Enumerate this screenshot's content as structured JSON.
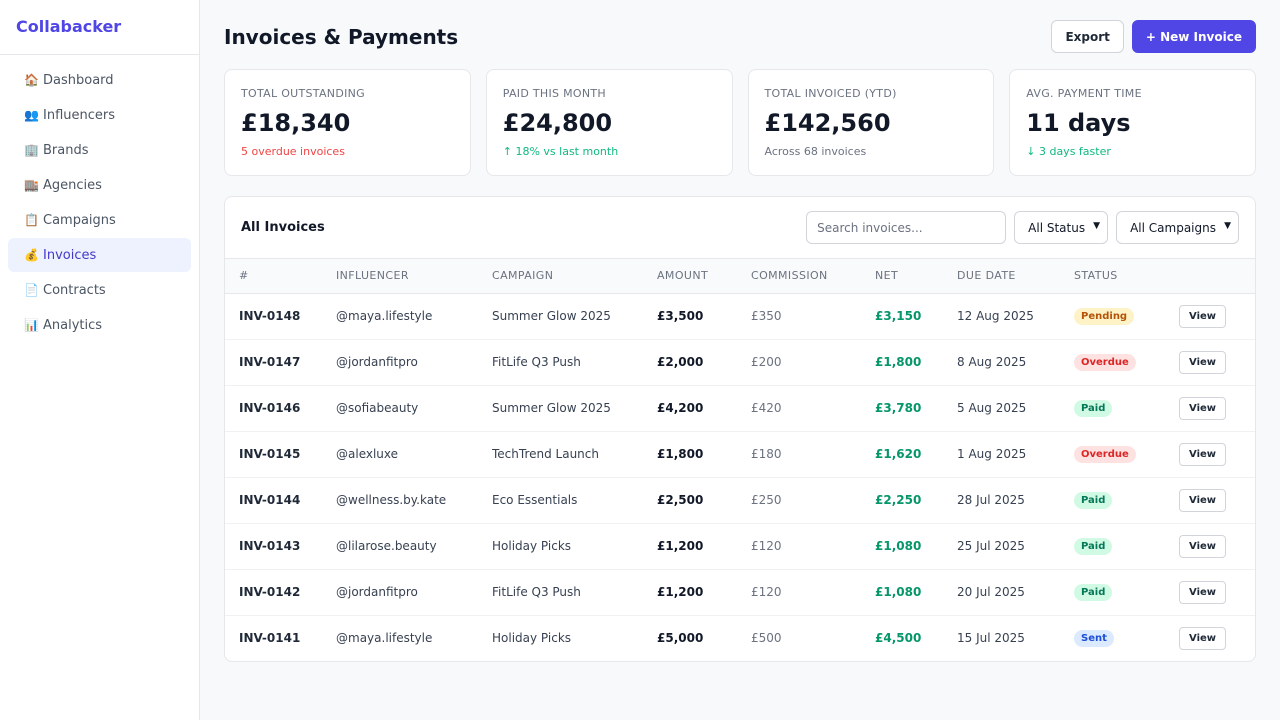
{
  "app": {
    "name": "Collabacker"
  },
  "sidebar": {
    "items": [
      {
        "icon": "🏠",
        "icon_name": "home-icon",
        "label": "Dashboard",
        "active": false
      },
      {
        "icon": "👥",
        "icon_name": "users-icon",
        "label": "Influencers",
        "active": false
      },
      {
        "icon": "🏢",
        "icon_name": "building-icon",
        "label": "Brands",
        "active": false
      },
      {
        "icon": "🏬",
        "icon_name": "store-icon",
        "label": "Agencies",
        "active": false
      },
      {
        "icon": "📋",
        "icon_name": "clipboard-icon",
        "label": "Campaigns",
        "active": false
      },
      {
        "icon": "💰",
        "icon_name": "money-bag-icon",
        "label": "Invoices",
        "active": true
      },
      {
        "icon": "📄",
        "icon_name": "document-icon",
        "label": "Contracts",
        "active": false
      },
      {
        "icon": "📊",
        "icon_name": "bar-chart-icon",
        "label": "Analytics",
        "active": false
      }
    ]
  },
  "header": {
    "title": "Invoices & Payments",
    "export_label": "Export",
    "new_invoice_label": "+ New Invoice"
  },
  "stats": [
    {
      "label": "TOTAL OUTSTANDING",
      "value": "£18,340",
      "sub": "5 overdue invoices",
      "tone": "red"
    },
    {
      "label": "PAID THIS MONTH",
      "value": "£24,800",
      "sub": "↑ 18% vs last month",
      "tone": "green"
    },
    {
      "label": "TOTAL INVOICED (YTD)",
      "value": "£142,560",
      "sub": "Across 68 invoices",
      "tone": "gray"
    },
    {
      "label": "AVG. PAYMENT TIME",
      "value": "11 days",
      "sub": "↓ 3 days faster",
      "tone": "green"
    }
  ],
  "table": {
    "title": "All Invoices",
    "search_placeholder": "Search invoices...",
    "status_filter": "All Status",
    "campaign_filter": "All Campaigns",
    "columns": [
      "#",
      "INFLUENCER",
      "CAMPAIGN",
      "AMOUNT",
      "COMMISSION",
      "NET",
      "DUE DATE",
      "STATUS"
    ],
    "view_label": "View",
    "rows": [
      {
        "id": "INV-0148",
        "influencer": "@maya.lifestyle",
        "campaign": "Summer Glow 2025",
        "amount": "£3,500",
        "commission": "£350",
        "net": "£3,150",
        "due": "12 Aug 2025",
        "status": "Pending",
        "status_key": "pending"
      },
      {
        "id": "INV-0147",
        "influencer": "@jordanfitpro",
        "campaign": "FitLife Q3 Push",
        "amount": "£2,000",
        "commission": "£200",
        "net": "£1,800",
        "due": "8 Aug 2025",
        "status": "Overdue",
        "status_key": "overdue"
      },
      {
        "id": "INV-0146",
        "influencer": "@sofiabeauty",
        "campaign": "Summer Glow 2025",
        "amount": "£4,200",
        "commission": "£420",
        "net": "£3,780",
        "due": "5 Aug 2025",
        "status": "Paid",
        "status_key": "paid"
      },
      {
        "id": "INV-0145",
        "influencer": "@alexluxe",
        "campaign": "TechTrend Launch",
        "amount": "£1,800",
        "commission": "£180",
        "net": "£1,620",
        "due": "1 Aug 2025",
        "status": "Overdue",
        "status_key": "overdue"
      },
      {
        "id": "INV-0144",
        "influencer": "@wellness.by.kate",
        "campaign": "Eco Essentials",
        "amount": "£2,500",
        "commission": "£250",
        "net": "£2,250",
        "due": "28 Jul 2025",
        "status": "Paid",
        "status_key": "paid"
      },
      {
        "id": "INV-0143",
        "influencer": "@lilarose.beauty",
        "campaign": "Holiday Picks",
        "amount": "£1,200",
        "commission": "£120",
        "net": "£1,080",
        "due": "25 Jul 2025",
        "status": "Paid",
        "status_key": "paid"
      },
      {
        "id": "INV-0142",
        "influencer": "@jordanfitpro",
        "campaign": "FitLife Q3 Push",
        "amount": "£1,200",
        "commission": "£120",
        "net": "£1,080",
        "due": "20 Jul 2025",
        "status": "Paid",
        "status_key": "paid"
      },
      {
        "id": "INV-0141",
        "influencer": "@maya.lifestyle",
        "campaign": "Holiday Picks",
        "amount": "£5,000",
        "commission": "£500",
        "net": "£4,500",
        "due": "15 Jul 2025",
        "status": "Sent",
        "status_key": "sent"
      }
    ]
  },
  "colors": {
    "brand": "#4f46e5",
    "positive": "#059669",
    "negative": "#ef4444"
  }
}
